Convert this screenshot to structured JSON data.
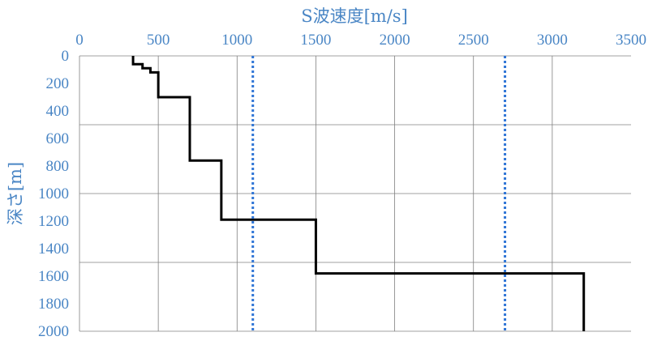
{
  "chart_data": {
    "type": "line",
    "title": "",
    "xlabel": "S波速度[m/s]",
    "ylabel": "深さ[m]",
    "xlim": [
      0,
      3500
    ],
    "ylim": [
      0,
      2000
    ],
    "y_inverted": true,
    "x_axis_position": "top",
    "x_ticks": [
      0,
      500,
      1000,
      1500,
      2000,
      2500,
      3000,
      3500
    ],
    "y_ticks": [
      0,
      200,
      400,
      600,
      800,
      1000,
      1200,
      1400,
      1600,
      1800,
      2000
    ],
    "grid": true,
    "series": [
      {
        "style": "solid",
        "color": "#000000",
        "points": [
          [
            340,
            0
          ],
          [
            340,
            60
          ],
          [
            400,
            60
          ],
          [
            400,
            90
          ],
          [
            450,
            90
          ],
          [
            450,
            120
          ],
          [
            500,
            120
          ],
          [
            500,
            300
          ],
          [
            700,
            300
          ],
          [
            700,
            760
          ],
          [
            900,
            760
          ],
          [
            900,
            1190
          ],
          [
            1500,
            1190
          ],
          [
            1500,
            1580
          ],
          [
            3200,
            1580
          ],
          [
            3200,
            2000
          ]
        ]
      },
      {
        "style": "dotted",
        "color": "#2f75d6",
        "points": [
          [
            1100,
            0
          ],
          [
            1100,
            2000
          ]
        ]
      },
      {
        "style": "dotted",
        "color": "#2f75d6",
        "points": [
          [
            2700,
            0
          ],
          [
            2700,
            2000
          ]
        ]
      }
    ],
    "colors": {
      "axis_text": "#4a86c5",
      "grid": "#808080"
    }
  }
}
